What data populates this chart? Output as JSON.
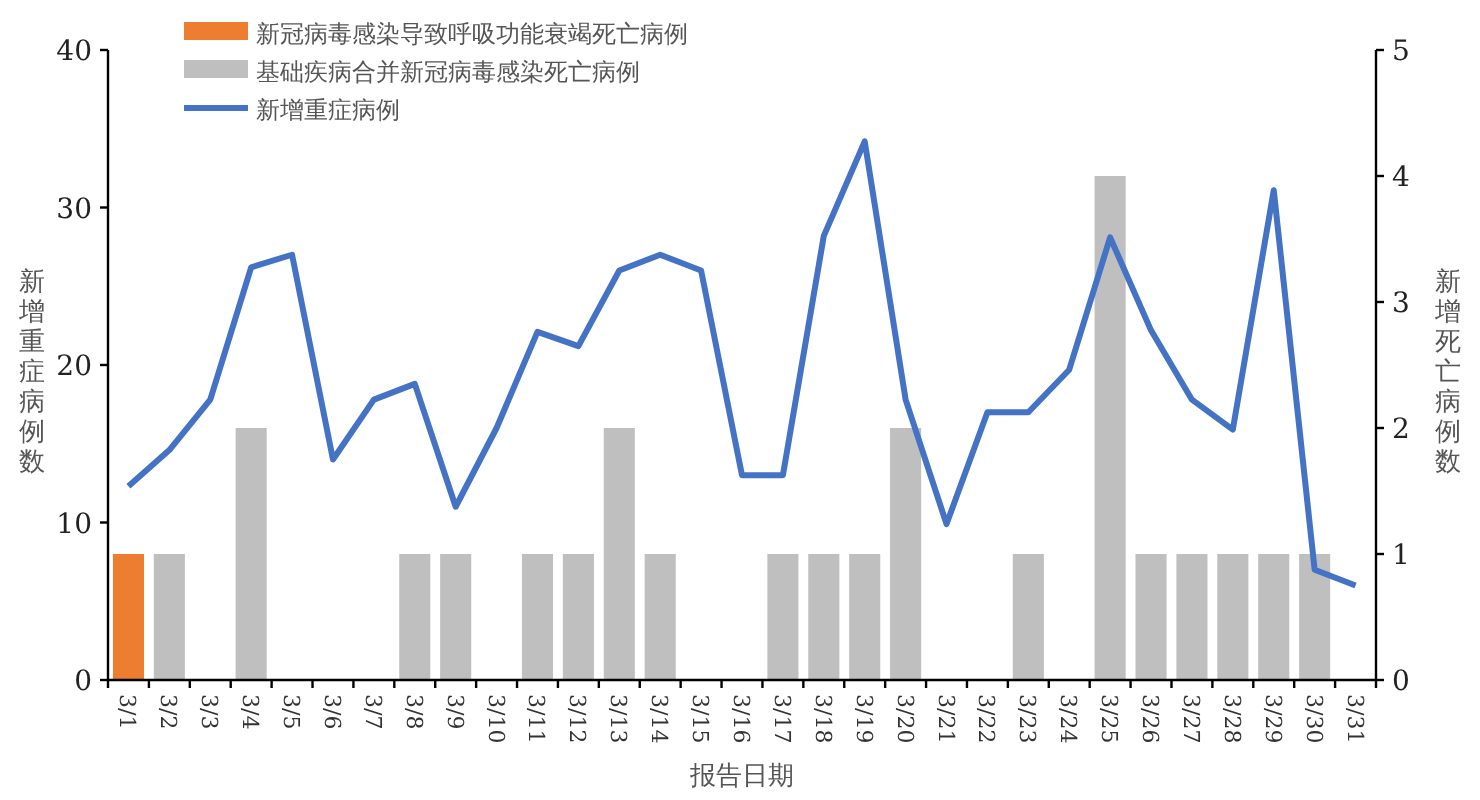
{
  "chart_data": {
    "type": "bar",
    "categories": [
      "3/1",
      "3/2",
      "3/3",
      "3/4",
      "3/5",
      "3/6",
      "3/7",
      "3/8",
      "3/9",
      "3/10",
      "3/11",
      "3/12",
      "3/13",
      "3/14",
      "3/15",
      "3/16",
      "3/17",
      "3/18",
      "3/19",
      "3/20",
      "3/21",
      "3/22",
      "3/23",
      "3/24",
      "3/25",
      "3/26",
      "3/27",
      "3/28",
      "3/29",
      "3/30",
      "3/31"
    ],
    "series": [
      {
        "name": "新冠病毒感染导致呼吸功能衰竭死亡病例",
        "color": "#ed7d31",
        "axis": "y2",
        "values": [
          1,
          null,
          null,
          null,
          null,
          null,
          null,
          null,
          null,
          null,
          null,
          null,
          null,
          null,
          null,
          null,
          null,
          null,
          null,
          null,
          null,
          null,
          null,
          null,
          null,
          null,
          null,
          null,
          null,
          null,
          null
        ]
      },
      {
        "name": "基础疾病合并新冠病毒感染死亡病例",
        "color": "#bfbfbf",
        "axis": "y2",
        "values": [
          null,
          1,
          null,
          2,
          null,
          null,
          null,
          1,
          1,
          null,
          1,
          1,
          2,
          1,
          null,
          null,
          1,
          1,
          1,
          2,
          null,
          null,
          1,
          null,
          4,
          1,
          1,
          1,
          1,
          1,
          null
        ]
      },
      {
        "name": "新增重症病例",
        "type": "line",
        "color": "#4472c4",
        "values": [
          12.3,
          14.6,
          17.8,
          26.2,
          27.0,
          14.0,
          17.8,
          18.8,
          11.0,
          16.0,
          22.1,
          21.2,
          26.0,
          27.0,
          26.0,
          13.0,
          13.0,
          28.2,
          34.2,
          17.8,
          9.9,
          17.0,
          17.0,
          19.7,
          28.1,
          22.2,
          17.8,
          15.9,
          31.1,
          7.0,
          6.0
        ]
      }
    ],
    "xlabel": "报告日期",
    "ylabel": "新增重症病例数",
    "y2label": "新增死亡病例数",
    "ylim": [
      0,
      40
    ],
    "yticks": [
      0,
      10,
      20,
      30,
      40
    ],
    "y2lim": [
      0,
      5
    ],
    "y2ticks": [
      0,
      1,
      2,
      3,
      4,
      5
    ],
    "legend": "top left",
    "grid": false,
    "marker": "none",
    "line_style": "solid"
  }
}
